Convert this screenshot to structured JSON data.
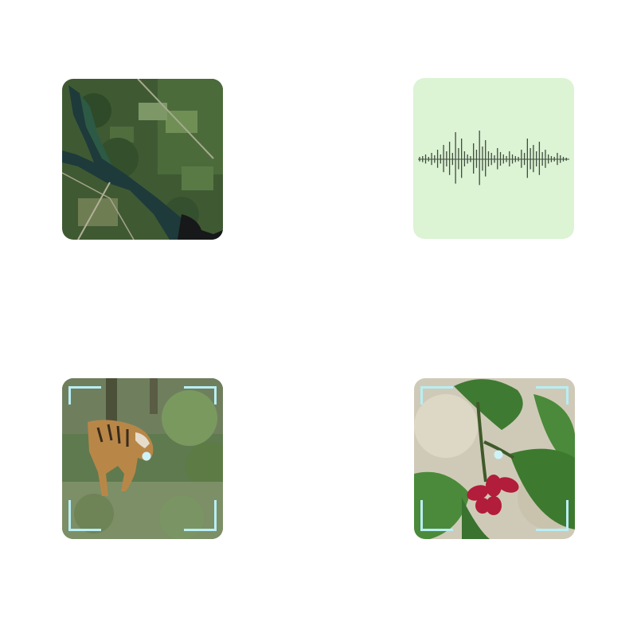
{
  "tiles": [
    {
      "id": "satellite",
      "icon": "satellite-map-image"
    },
    {
      "id": "audio",
      "icon": "audio-waveform-icon",
      "colors": {
        "background": "#dcf3d4",
        "wave": "#3f4d3f"
      }
    },
    {
      "id": "tiger",
      "icon": "tiger-camera-trap-image",
      "colors": {
        "viewfinder": "#b8eef4"
      }
    },
    {
      "id": "plant",
      "icon": "plant-berries-image",
      "colors": {
        "viewfinder": "#b8eef4",
        "berries": "#b11d3a"
      }
    }
  ]
}
